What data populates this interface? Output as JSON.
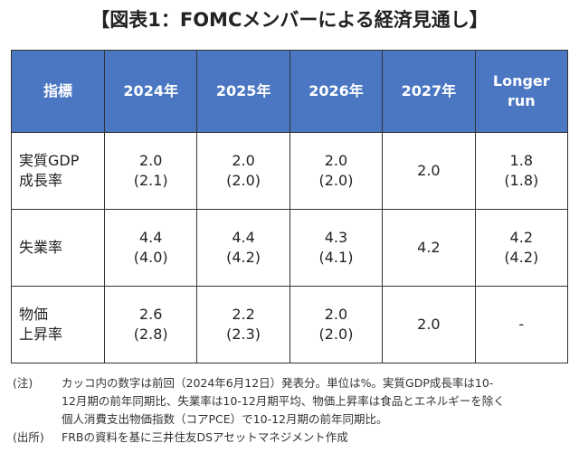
{
  "header": {
    "title": "【図表1：FOMCメンバーによる経済見通し】"
  },
  "table": {
    "columns": [
      [
        "指標"
      ],
      [
        "2024年"
      ],
      [
        "2025年"
      ],
      [
        "2026年"
      ],
      [
        "2027年"
      ],
      [
        "Longer",
        "run"
      ]
    ],
    "rows": [
      [
        [
          "実質GDP",
          "成長率"
        ],
        [
          "2.0",
          "(2.1)"
        ],
        [
          "2.0",
          "(2.0)"
        ],
        [
          "2.0",
          "(2.0)"
        ],
        [
          "2.0"
        ],
        [
          "1.8",
          "(1.8)"
        ]
      ],
      [
        [
          "失業率"
        ],
        [
          "4.4",
          "(4.0)"
        ],
        [
          "4.4",
          "(4.2)"
        ],
        [
          "4.3",
          "(4.1)"
        ],
        [
          "4.2"
        ],
        [
          "4.2",
          "(4.2)"
        ]
      ],
      [
        [
          "物価",
          "上昇率"
        ],
        [
          "2.6",
          "(2.8)"
        ],
        [
          "2.2",
          "(2.3)"
        ],
        [
          "2.0",
          "(2.0)"
        ],
        [
          "2.0"
        ],
        [
          "-"
        ]
      ]
    ]
  },
  "notes": [
    {
      "label": "(注)",
      "lines": [
        "カッコ内の数字は前回（2024年6月12日）発表分。単位は%。実質GDP成長率は10-",
        "12月期の前年同期比、失業率は10-12月期平均、物価上昇率は食品とエネルギーを除く",
        "個人消費支出物価指数（コアPCE）で10-12月期の前年同期比。"
      ]
    },
    {
      "label": "(出所)",
      "lines": [
        "FRBの資料を基に三井住友DSアセットマネジメント作成"
      ]
    }
  ]
}
